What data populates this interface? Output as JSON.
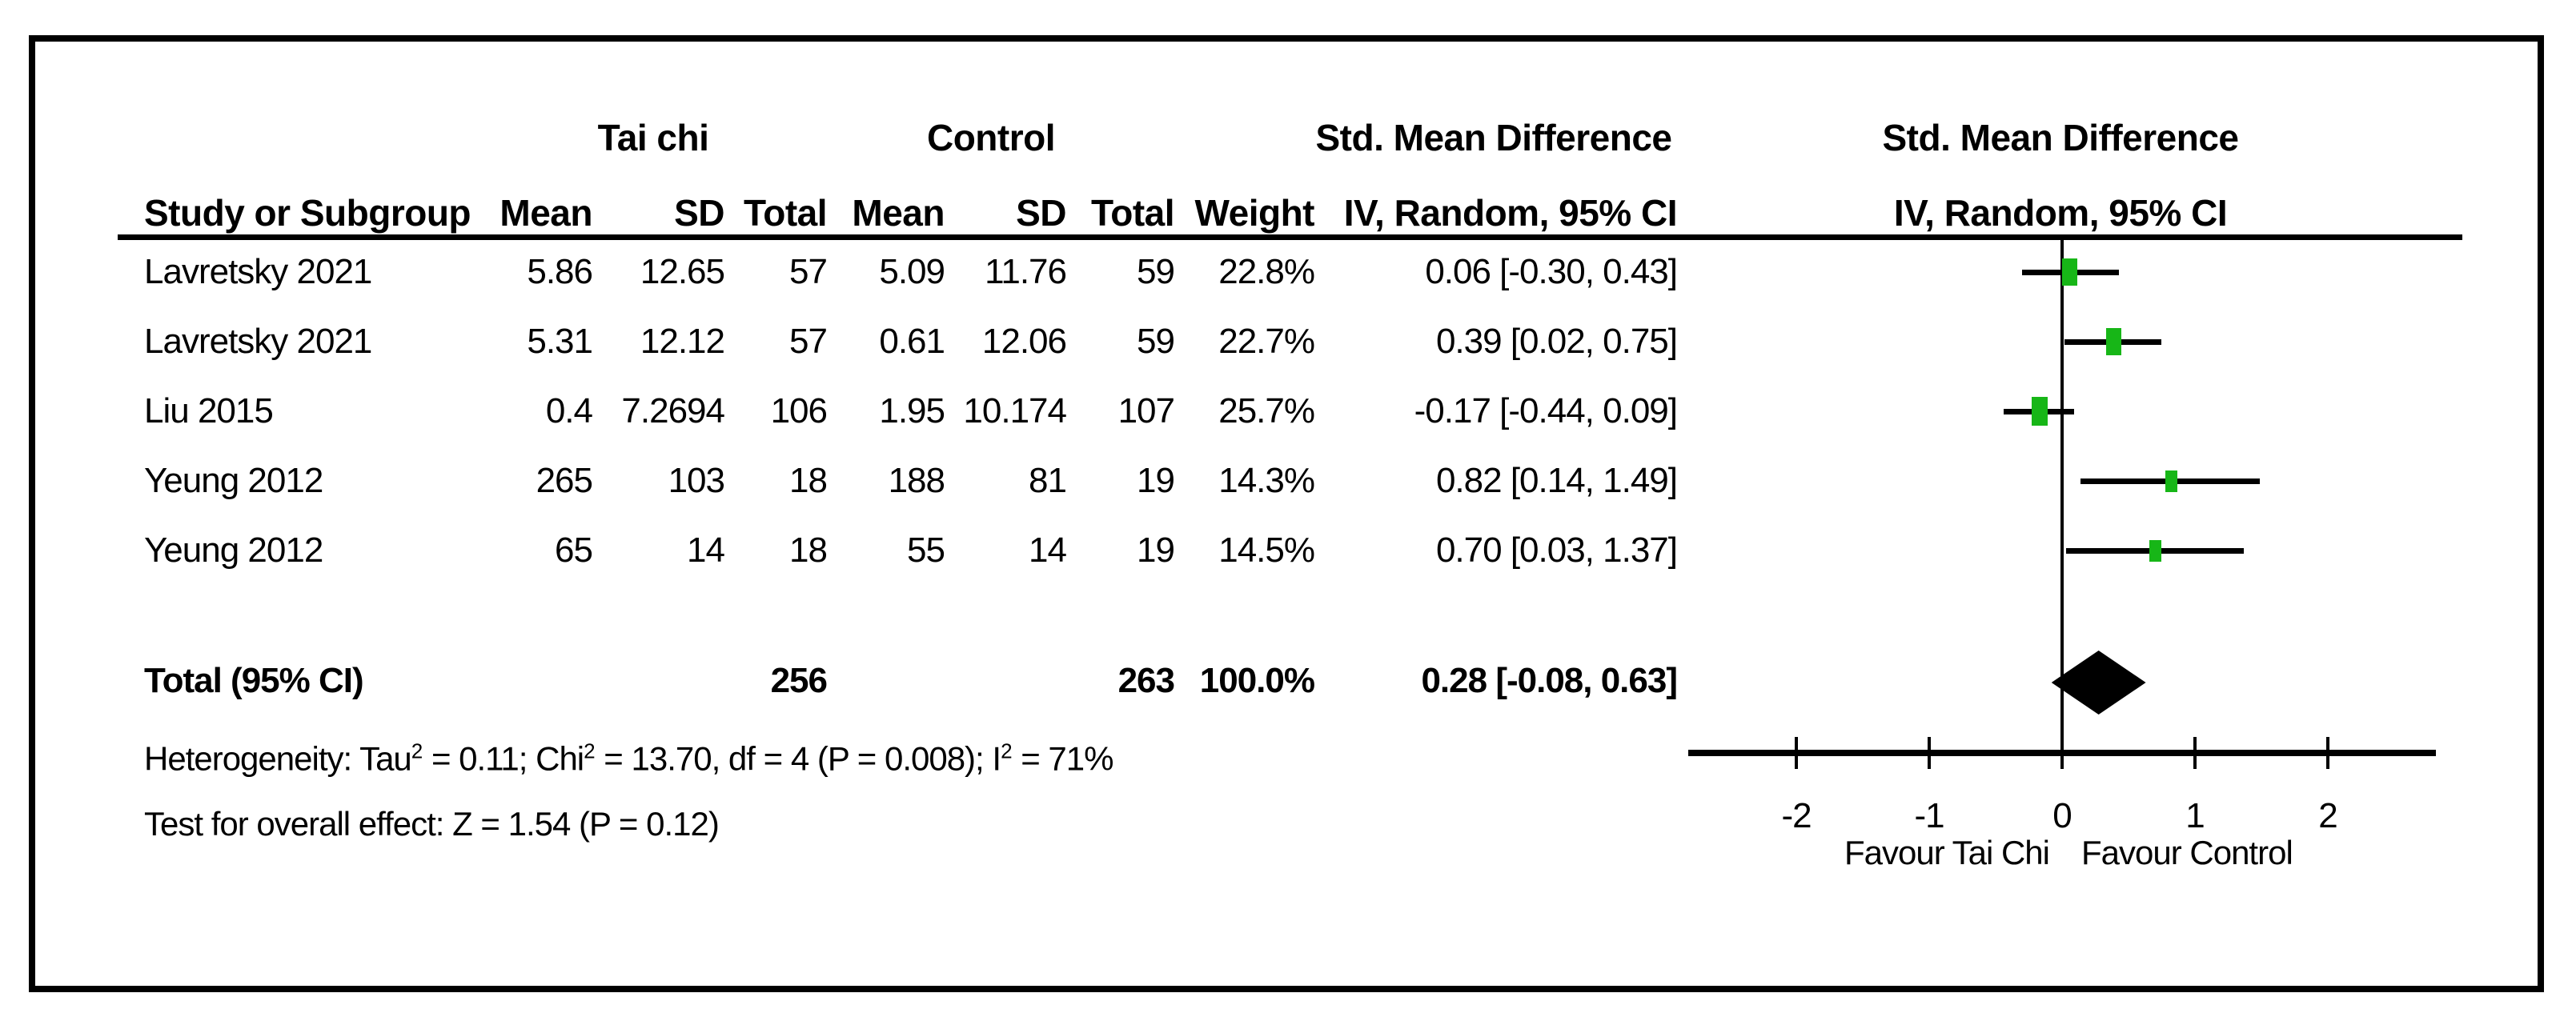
{
  "table": {
    "group_headers": {
      "tai_chi": "Tai chi",
      "control": "Control",
      "smd_col": "Std. Mean Difference",
      "smd_plot": "Std. Mean Difference"
    },
    "col_headers": {
      "study": "Study or Subgroup",
      "mean1": "Mean",
      "sd1": "SD",
      "total1": "Total",
      "mean2": "Mean",
      "sd2": "SD",
      "total2": "Total",
      "weight": "Weight",
      "ci": "IV, Random, 95% CI",
      "ci_plot": "IV, Random, 95% CI"
    },
    "rows": [
      {
        "study": "Lavretsky 2021",
        "mean1": "5.86",
        "sd1": "12.65",
        "total1": "57",
        "mean2": "5.09",
        "sd2": "11.76",
        "total2": "59",
        "weight": "22.8%",
        "ci": "0.06 [-0.30, 0.43]"
      },
      {
        "study": "Lavretsky 2021",
        "mean1": "5.31",
        "sd1": "12.12",
        "total1": "57",
        "mean2": "0.61",
        "sd2": "12.06",
        "total2": "59",
        "weight": "22.7%",
        "ci": "0.39 [0.02, 0.75]"
      },
      {
        "study": "Liu 2015",
        "mean1": "0.4",
        "sd1": "7.2694",
        "total1": "106",
        "mean2": "1.95",
        "sd2": "10.174",
        "total2": "107",
        "weight": "25.7%",
        "ci": "-0.17 [-0.44, 0.09]"
      },
      {
        "study": "Yeung 2012",
        "mean1": "265",
        "sd1": "103",
        "total1": "18",
        "mean2": "188",
        "sd2": "81",
        "total2": "19",
        "weight": "14.3%",
        "ci": "0.82 [0.14, 1.49]"
      },
      {
        "study": "Yeung 2012",
        "mean1": "65",
        "sd1": "14",
        "total1": "18",
        "mean2": "55",
        "sd2": "14",
        "total2": "19",
        "weight": "14.5%",
        "ci": "0.70 [0.03, 1.37]"
      }
    ],
    "total_row": {
      "label": "Total (95% CI)",
      "total1": "256",
      "total2": "263",
      "weight": "100.0%",
      "ci": "0.28 [-0.08, 0.63]"
    }
  },
  "footer": {
    "het_1": "Heterogeneity: Tau",
    "het_sup1": "2",
    "het_2": " = 0.11; Chi",
    "het_sup2": "2",
    "het_3": " = 13.70, df = 4 (P = 0.008); I",
    "het_sup3": "2",
    "het_4": " = 71%",
    "test": "Test for overall effect: Z = 1.54 (P = 0.12)"
  },
  "axis": {
    "favour_left": "Favour Tai Chi",
    "favour_right": "Favour Control"
  },
  "chart_data": {
    "type": "forest",
    "title": "Std. Mean Difference  IV, Random, 95% CI",
    "effect_measure": "Std. Mean Difference",
    "model": "IV, Random, 95% CI",
    "marker_color": "#17b617",
    "diamond_color": "#000000",
    "x_ticks": [
      -2,
      -1,
      0,
      1,
      2
    ],
    "x_tick_labels": [
      "-2",
      "-1",
      "0",
      "1",
      "2"
    ],
    "x_range": [
      -2.8,
      2.8
    ],
    "xlabel_left": "Favour Tai Chi",
    "xlabel_right": "Favour Control",
    "studies": [
      {
        "name": "Lavretsky 2021",
        "mean_t": 5.86,
        "sd_t": 12.65,
        "n_t": 57,
        "mean_c": 5.09,
        "sd_c": 11.76,
        "n_c": 59,
        "weight_pct": 22.8,
        "est": 0.06,
        "lo": -0.3,
        "hi": 0.43
      },
      {
        "name": "Lavretsky 2021",
        "mean_t": 5.31,
        "sd_t": 12.12,
        "n_t": 57,
        "mean_c": 0.61,
        "sd_c": 12.06,
        "n_c": 59,
        "weight_pct": 22.7,
        "est": 0.39,
        "lo": 0.02,
        "hi": 0.75
      },
      {
        "name": "Liu 2015",
        "mean_t": 0.4,
        "sd_t": 7.2694,
        "n_t": 106,
        "mean_c": 1.95,
        "sd_c": 10.174,
        "n_c": 107,
        "weight_pct": 25.7,
        "est": -0.17,
        "lo": -0.44,
        "hi": 0.09
      },
      {
        "name": "Yeung 2012",
        "mean_t": 265,
        "sd_t": 103,
        "n_t": 18,
        "mean_c": 188,
        "sd_c": 81,
        "n_c": 19,
        "weight_pct": 14.3,
        "est": 0.82,
        "lo": 0.14,
        "hi": 1.49
      },
      {
        "name": "Yeung 2012",
        "mean_t": 65,
        "sd_t": 14,
        "n_t": 18,
        "mean_c": 55,
        "sd_c": 14,
        "n_c": 19,
        "weight_pct": 14.5,
        "est": 0.7,
        "lo": 0.03,
        "hi": 1.37
      }
    ],
    "total": {
      "n_t": 256,
      "n_c": 263,
      "weight_pct": 100.0,
      "est": 0.28,
      "lo": -0.08,
      "hi": 0.63
    },
    "heterogeneity": {
      "tau2": 0.11,
      "chi2": 13.7,
      "df": 4,
      "p": 0.008,
      "i2_pct": 71
    },
    "overall_effect": {
      "z": 1.54,
      "p": 0.12
    }
  }
}
